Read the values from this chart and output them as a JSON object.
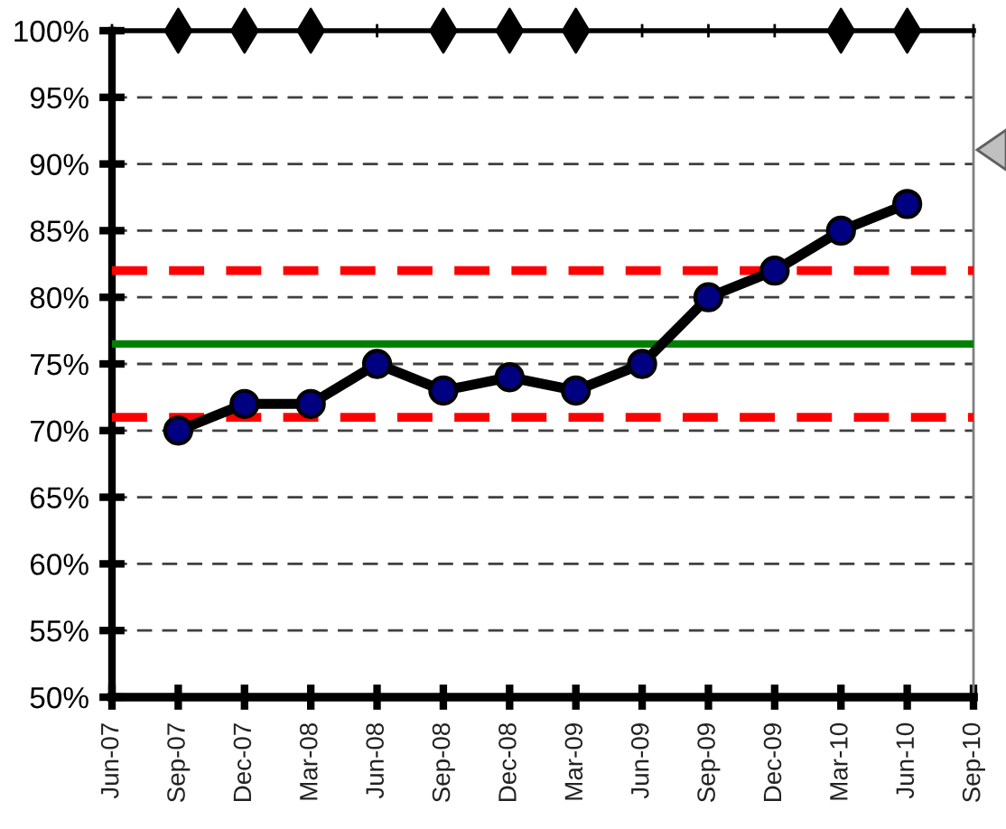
{
  "chart_data": {
    "type": "line",
    "categories": [
      "Jun-07",
      "Sep-07",
      "Dec-07",
      "Mar-08",
      "Jun-08",
      "Sep-08",
      "Dec-08",
      "Mar-09",
      "Jun-09",
      "Sep-09",
      "Dec-09",
      "Mar-10",
      "Jun-10",
      "Sep-10"
    ],
    "series": [
      {
        "color": "#000000",
        "marker": "circle",
        "colors": [
          "#000080",
          "#000080",
          "#000080",
          "#000080",
          "#000080",
          "#000080",
          "#000080",
          "#000080",
          "#000080",
          "#000080",
          "#000080",
          "#000080",
          "#000080",
          "#000080"
        ],
        "values": [
          null,
          70,
          72,
          72,
          75,
          73,
          74,
          73,
          75,
          80,
          82,
          85,
          87,
          null
        ]
      },
      {
        "type": "scatter",
        "color": "#000000",
        "marker": "diamond",
        "values": [
          null,
          100,
          100,
          100,
          null,
          100,
          100,
          100,
          null,
          null,
          null,
          100,
          100,
          null
        ]
      }
    ],
    "ylim": [
      50,
      100
    ],
    "yticks": [
      {
        "value": 50,
        "label": "50%"
      },
      {
        "value": 55,
        "label": "55%"
      },
      {
        "value": 60,
        "label": "60%"
      },
      {
        "value": 65,
        "label": "65%"
      },
      {
        "value": 70,
        "label": "70%"
      },
      {
        "value": 75,
        "label": "75%"
      },
      {
        "value": 80,
        "label": "80%"
      },
      {
        "value": 85,
        "label": "85%"
      },
      {
        "value": 90,
        "label": "90%"
      },
      {
        "value": 95,
        "label": "95%"
      },
      {
        "value": 100,
        "label": "100%"
      }
    ],
    "grid": "y",
    "ref_lines": [
      {
        "axis": "y",
        "value": 76.5,
        "color": "#008000",
        "line_style": "solid"
      },
      {
        "axis": "y",
        "value": 82,
        "color": "#ff0000",
        "line_style": "dashed"
      },
      {
        "axis": "y",
        "value": 71,
        "color": "#ff0000",
        "line_style": "dashed"
      }
    ]
  }
}
